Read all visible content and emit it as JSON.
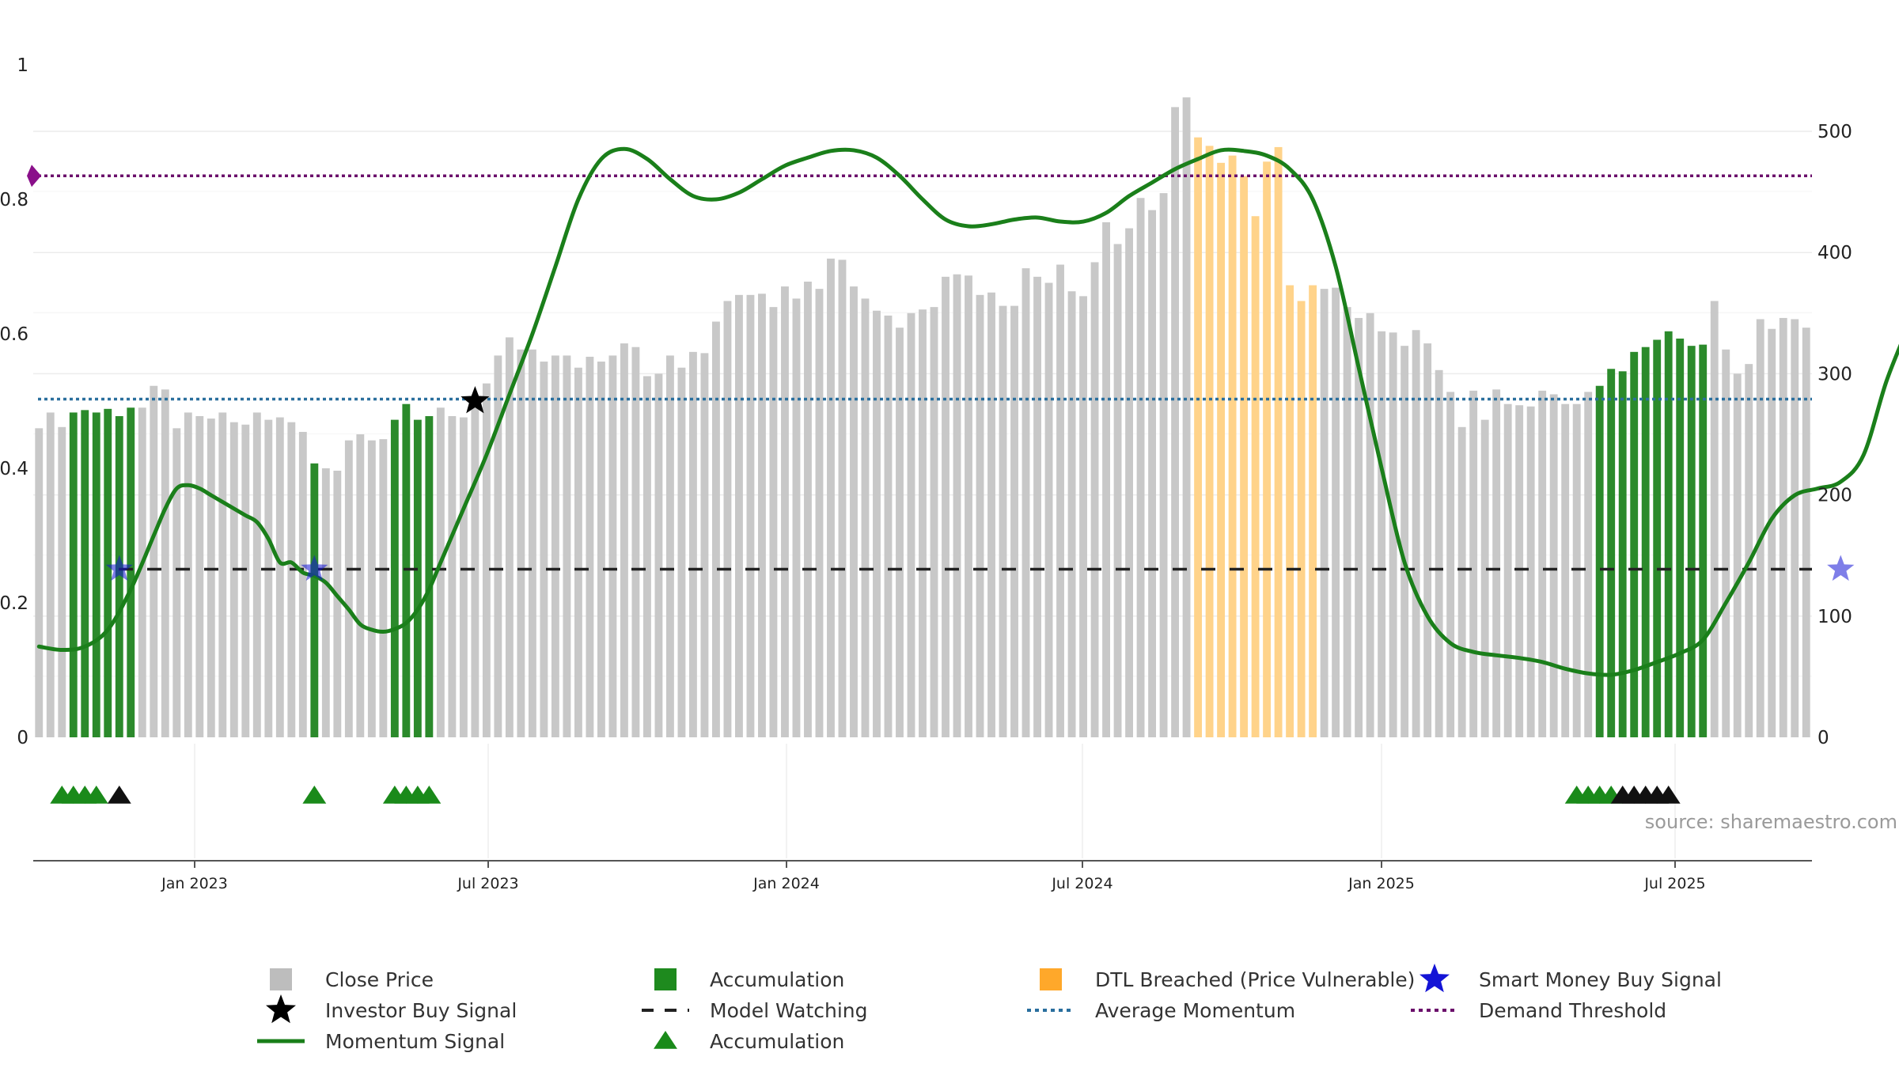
{
  "chart_data": {
    "type": "bar",
    "source": "source: sharemaestro.com",
    "x_ticks": [
      "Jan 2023",
      "Jul 2023",
      "Jan 2024",
      "Jul 2024",
      "Jan 2025",
      "Jul 2025"
    ],
    "left_axis": {
      "ylim": [
        0,
        1
      ],
      "ticks": [
        "0",
        "0.2",
        "0.4",
        "0.6",
        "0.8",
        "1"
      ],
      "tick_values": [
        0,
        0.2,
        0.4,
        0.6,
        0.8,
        1
      ]
    },
    "right_axis": {
      "ylim": [
        0,
        555
      ],
      "ticks": [
        "0",
        "100",
        "200",
        "300",
        "400",
        "500"
      ],
      "tick_values": [
        0,
        100,
        200,
        300,
        400,
        500
      ]
    },
    "close_price": [
      255,
      268,
      256,
      268,
      270,
      268,
      271,
      265,
      272,
      272,
      290,
      287,
      255,
      268,
      265,
      263,
      268,
      260,
      258,
      268,
      262,
      264,
      260,
      252,
      226,
      222,
      220,
      245,
      250,
      245,
      246,
      262,
      275,
      262,
      265,
      272,
      265,
      264,
      272,
      292,
      315,
      330,
      320,
      320,
      310,
      315,
      315,
      305,
      314,
      310,
      315,
      325,
      322,
      298,
      300,
      315,
      305,
      318,
      317,
      343,
      360,
      365,
      365,
      366,
      355,
      372,
      362,
      376,
      370,
      395,
      394,
      372,
      362,
      352,
      348,
      338,
      350,
      353,
      355,
      380,
      382,
      381,
      365,
      367,
      356,
      356,
      387,
      380,
      375,
      390,
      368,
      364,
      392,
      425,
      407,
      420,
      445,
      435,
      449,
      520,
      528,
      495,
      488,
      474,
      480,
      463,
      430,
      475,
      487,
      373,
      360,
      373,
      370,
      371,
      355,
      346,
      350,
      335,
      334,
      323,
      336,
      325,
      303,
      285,
      256,
      286,
      262,
      287,
      275,
      274,
      273,
      286,
      283,
      275,
      275,
      285,
      290,
      304,
      302,
      318,
      322,
      328,
      335,
      329,
      323,
      324,
      360,
      320,
      300,
      308,
      345,
      337,
      346,
      345,
      338
    ],
    "accumulation_bars": [
      3,
      4,
      5,
      6,
      7,
      8,
      24,
      31,
      32,
      33,
      34,
      136,
      137,
      138,
      139,
      140,
      141,
      142,
      143,
      144,
      145
    ],
    "dtl_breached_bars": [
      101,
      102,
      103,
      104,
      105,
      106,
      107,
      108,
      109,
      110,
      111
    ],
    "momentum_signal": [
      [
        0,
        0.135
      ],
      [
        2,
        0.13
      ],
      [
        4,
        0.135
      ],
      [
        6,
        0.16
      ],
      [
        8,
        0.22
      ],
      [
        10,
        0.3
      ],
      [
        11,
        0.34
      ],
      [
        12,
        0.37
      ],
      [
        13,
        0.375
      ],
      [
        14,
        0.37
      ],
      [
        15,
        0.36
      ],
      [
        16,
        0.35
      ],
      [
        17,
        0.34
      ],
      [
        18,
        0.33
      ],
      [
        19,
        0.32
      ],
      [
        20,
        0.295
      ],
      [
        21,
        0.26
      ],
      [
        22,
        0.26
      ],
      [
        23,
        0.245
      ],
      [
        24,
        0.24
      ],
      [
        25,
        0.23
      ],
      [
        26,
        0.21
      ],
      [
        27,
        0.19
      ],
      [
        28,
        0.168
      ],
      [
        29,
        0.16
      ],
      [
        30,
        0.157
      ],
      [
        31,
        0.161
      ],
      [
        32,
        0.17
      ],
      [
        33,
        0.19
      ],
      [
        34,
        0.22
      ],
      [
        35,
        0.26
      ],
      [
        37,
        0.34
      ],
      [
        39,
        0.42
      ],
      [
        41,
        0.51
      ],
      [
        43,
        0.6
      ],
      [
        45,
        0.7
      ],
      [
        47,
        0.8
      ],
      [
        49,
        0.86
      ],
      [
        51,
        0.875
      ],
      [
        53,
        0.86
      ],
      [
        55,
        0.83
      ],
      [
        57,
        0.805
      ],
      [
        59,
        0.8
      ],
      [
        61,
        0.81
      ],
      [
        63,
        0.83
      ],
      [
        65,
        0.85
      ],
      [
        67,
        0.862
      ],
      [
        69,
        0.872
      ],
      [
        71,
        0.873
      ],
      [
        73,
        0.862
      ],
      [
        75,
        0.835
      ],
      [
        77,
        0.8
      ],
      [
        79,
        0.77
      ],
      [
        81,
        0.76
      ],
      [
        83,
        0.763
      ],
      [
        85,
        0.77
      ],
      [
        87,
        0.773
      ],
      [
        89,
        0.767
      ],
      [
        91,
        0.767
      ],
      [
        93,
        0.78
      ],
      [
        95,
        0.805
      ],
      [
        97,
        0.825
      ],
      [
        99,
        0.845
      ],
      [
        101,
        0.86
      ],
      [
        103,
        0.873
      ],
      [
        105,
        0.872
      ],
      [
        107,
        0.865
      ],
      [
        109,
        0.845
      ],
      [
        111,
        0.8
      ],
      [
        113,
        0.7
      ],
      [
        115,
        0.55
      ],
      [
        117,
        0.4
      ],
      [
        119,
        0.26
      ],
      [
        121,
        0.18
      ],
      [
        123,
        0.14
      ],
      [
        125,
        0.127
      ],
      [
        127,
        0.122
      ],
      [
        129,
        0.118
      ],
      [
        131,
        0.112
      ],
      [
        133,
        0.102
      ],
      [
        135,
        0.095
      ],
      [
        137,
        0.093
      ],
      [
        139,
        0.1
      ],
      [
        141,
        0.112
      ],
      [
        143,
        0.125
      ],
      [
        145,
        0.145
      ],
      [
        147,
        0.2
      ],
      [
        149,
        0.26
      ],
      [
        151,
        0.325
      ],
      [
        153,
        0.36
      ],
      [
        155,
        0.37
      ],
      [
        157,
        0.38
      ],
      [
        159,
        0.42
      ],
      [
        161,
        0.53
      ],
      [
        163,
        0.615
      ]
    ],
    "average_momentum": 0.503,
    "demand_threshold": 0.835,
    "model_watching": 0.25,
    "investor_buy_signal": [
      [
        38,
        0.5
      ]
    ],
    "smart_money_buy_signal": [
      [
        7,
        0.25
      ],
      [
        24,
        0.25
      ],
      [
        157,
        0.25
      ]
    ],
    "accumulation_markers": [
      2,
      3,
      4,
      5,
      24,
      31,
      32,
      33,
      34,
      134,
      135,
      136,
      137
    ],
    "model_markers": [
      7,
      138,
      139,
      140,
      141,
      142
    ],
    "legend": [
      {
        "label": "Close Price",
        "type": "gray-square"
      },
      {
        "label": "Accumulation",
        "type": "green-square"
      },
      {
        "label": "DTL Breached (Price Vulnerable)",
        "type": "orange-square"
      },
      {
        "label": "Smart Money Buy Signal",
        "type": "blue-star"
      },
      {
        "label": "Investor Buy Signal",
        "type": "black-star"
      },
      {
        "label": "Model Watching",
        "type": "black-dash"
      },
      {
        "label": "Average Momentum",
        "type": "blue-dotted"
      },
      {
        "label": "Demand Threshold",
        "type": "purple-dotted"
      },
      {
        "label": "Momentum Signal",
        "type": "green-line"
      },
      {
        "label": "Accumulation",
        "type": "green-triangle"
      }
    ],
    "colors": {
      "close": "#c8c8c8",
      "accumulation": "#2b8a2b",
      "dtl": "#ffd38a",
      "momentum": "#1a7f1a",
      "avg_momentum": "#2a6f9e",
      "demand": "#6b0f6b",
      "smart_money": "#1414d6",
      "marker_green": "#1a8a1a"
    }
  }
}
